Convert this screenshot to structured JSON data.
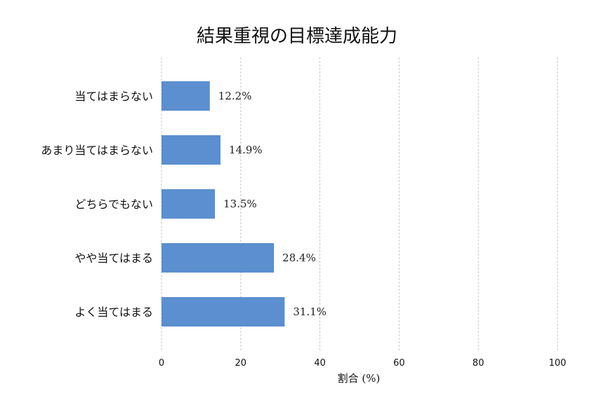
{
  "chart_data": {
    "type": "bar",
    "orientation": "horizontal",
    "title": "結果重視の目標達成能力",
    "xlabel": "割合 (%)",
    "ylabel": "",
    "xlim": [
      0,
      100
    ],
    "xticks": [
      0,
      20,
      40,
      60,
      80,
      100
    ],
    "grid": "vertical-dashed",
    "bar_color": "#5b8fd0",
    "categories": [
      "当てはまらない",
      "あまり当てはまらない",
      "どちらでもない",
      "やや当てはまる",
      "よく当てはまる"
    ],
    "values": [
      12.2,
      14.9,
      13.5,
      28.4,
      31.1
    ],
    "value_labels": [
      "12.2%",
      "14.9%",
      "13.5%",
      "28.4%",
      "31.1%"
    ]
  }
}
